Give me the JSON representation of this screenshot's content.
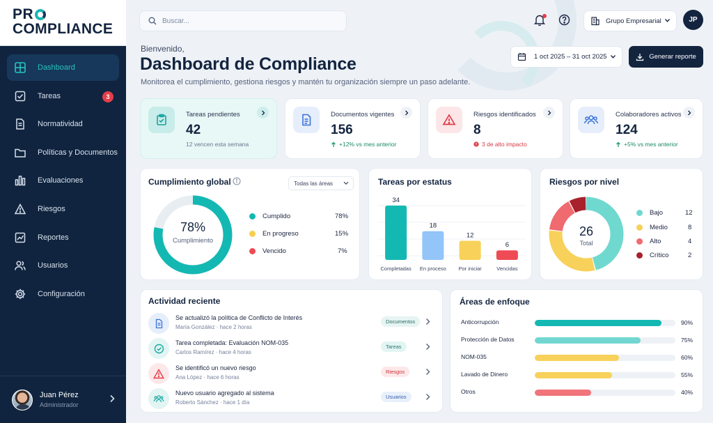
{
  "logo": {
    "line1": "PR",
    "line2": "COMPLIANCE"
  },
  "sidebar": {
    "items": [
      {
        "label": "Dashboard",
        "icon": "grid-icon",
        "active": true
      },
      {
        "label": "Tareas",
        "icon": "checkbox-icon",
        "badge": "3"
      },
      {
        "label": "Normatividad",
        "icon": "document-icon"
      },
      {
        "label": "Políticas y Documentos",
        "icon": "folder-icon"
      },
      {
        "label": "Evaluaciones",
        "icon": "bar-chart-icon"
      },
      {
        "label": "Riesgos",
        "icon": "warning-icon"
      },
      {
        "label": "Reportes",
        "icon": "line-chart-icon"
      },
      {
        "label": "Usuarios",
        "icon": "users-icon"
      },
      {
        "label": "Configuración",
        "icon": "gear-icon"
      }
    ],
    "user": {
      "name": "Juan Pérez",
      "role": "Administrador"
    }
  },
  "topbar": {
    "search_placeholder": "Buscar...",
    "org": "Grupo Empresarial",
    "avatar_initials": "JP"
  },
  "header": {
    "welcome": "Bienvenido,",
    "title": "Dashboard de Compliance",
    "subtitle": "Monitorea el cumplimiento, gestiona riesgos y mantén tu organización siempre un paso adelante.",
    "date_range": "1 oct 2025 – 31 oct 2025",
    "report_button": "Generar reporte"
  },
  "stats": [
    {
      "title": "Tareas pendientes",
      "value": "42",
      "note": "12 vencen esta semana",
      "icon": "clipboard-check-icon"
    },
    {
      "title": "Documentos vigentes",
      "value": "156",
      "note": "+12% vs mes anterior",
      "icon": "document-icon"
    },
    {
      "title": "Riesgos identificados",
      "value": "8",
      "note": "3 de alto impacto",
      "icon": "warning-icon"
    },
    {
      "title": "Colaboradores activos",
      "value": "124",
      "note": "+5% vs mes anterior",
      "icon": "users-icon"
    }
  ],
  "compliance": {
    "title": "Cumplimiento global",
    "filter": "Todas las áreas",
    "center_value": "78%",
    "center_label": "Cumplimiento",
    "legend": [
      {
        "label": "Cumplido",
        "value": "78%",
        "pct": 78,
        "color": "#14b8b3"
      },
      {
        "label": "En progreso",
        "value": "15%",
        "pct": 15,
        "color": "#f6cf4f"
      },
      {
        "label": "Vencido",
        "value": "7%",
        "pct": 7,
        "color": "#ef4b55"
      }
    ]
  },
  "tasks_chart": {
    "title": "Tareas por estatus"
  },
  "chart_data": {
    "type": "bar",
    "title": "Tareas por estatus",
    "categories": [
      "Completadas",
      "En proceso",
      "Por iniciar",
      "Vencidas"
    ],
    "values": [
      34,
      18,
      12,
      6
    ],
    "colors": [
      "#14b8b3",
      "#93c5f8",
      "#f8d15a",
      "#ef4b55"
    ],
    "ylim": [
      0,
      34
    ],
    "grid": true
  },
  "risks": {
    "title": "Riesgos por nivel",
    "total": "26",
    "total_label": "Total",
    "levels": [
      {
        "label": "Bajo",
        "value": "12",
        "n": 12,
        "color": "#6fd9cf"
      },
      {
        "label": "Medio",
        "value": "8",
        "n": 8,
        "color": "#f8d15a"
      },
      {
        "label": "Alto",
        "value": "4",
        "n": 4,
        "color": "#ef6b6f"
      },
      {
        "label": "Crítico",
        "value": "2",
        "n": 2,
        "color": "#a9212b"
      }
    ]
  },
  "activity": {
    "title": "Actividad reciente",
    "items": [
      {
        "title": "Se actualizó la política de Conflicto de Interés",
        "meta": "María González · hace 2 horas",
        "tag": "Documentos",
        "icon": "document-icon",
        "tag_bg": "#e6f4f2",
        "tag_fg": "#2a6b66",
        "ic_bg": "#e6eefb",
        "ic_fg": "#3b73d9"
      },
      {
        "title": "Tarea completada: Evaluación NOM-035",
        "meta": "Carlos Ramírez · hace 4 horas",
        "tag": "Tareas",
        "icon": "check-circle-icon",
        "tag_bg": "#e2f5f3",
        "tag_fg": "#2a7a73",
        "ic_bg": "#e2f5f3",
        "ic_fg": "#1aa9a3"
      },
      {
        "title": "Se identificó un nuevo riesgo",
        "meta": "Ana López · hace 6 horas",
        "tag": "Riesgos",
        "icon": "warning-icon",
        "tag_bg": "#fde8e9",
        "tag_fg": "#c9343e",
        "ic_bg": "#fde8e9",
        "ic_fg": "#e03c47"
      },
      {
        "title": "Nuevo usuario agregado al sistema",
        "meta": "Roberto Sánchez · hace 1 día",
        "tag": "Usuarios",
        "icon": "users-icon",
        "tag_bg": "#e8f0fb",
        "tag_fg": "#345ea8",
        "ic_bg": "#e2f5f3",
        "ic_fg": "#1aa9a3"
      }
    ]
  },
  "areas": {
    "title": "Áreas de enfoque",
    "items": [
      {
        "label": "Anticorrupción",
        "value": "90%",
        "pct": 90,
        "color": "#14b8b3"
      },
      {
        "label": "Protección de Datos",
        "value": "75%",
        "pct": 75,
        "color": "#72d7d0"
      },
      {
        "label": "NOM-035",
        "value": "60%",
        "pct": 60,
        "color": "#f8d15a"
      },
      {
        "label": "Lavado de Dinero",
        "value": "55%",
        "pct": 55,
        "color": "#f8d15a"
      },
      {
        "label": "Otros",
        "value": "40%",
        "pct": 40,
        "color": "#f0747a"
      }
    ]
  }
}
